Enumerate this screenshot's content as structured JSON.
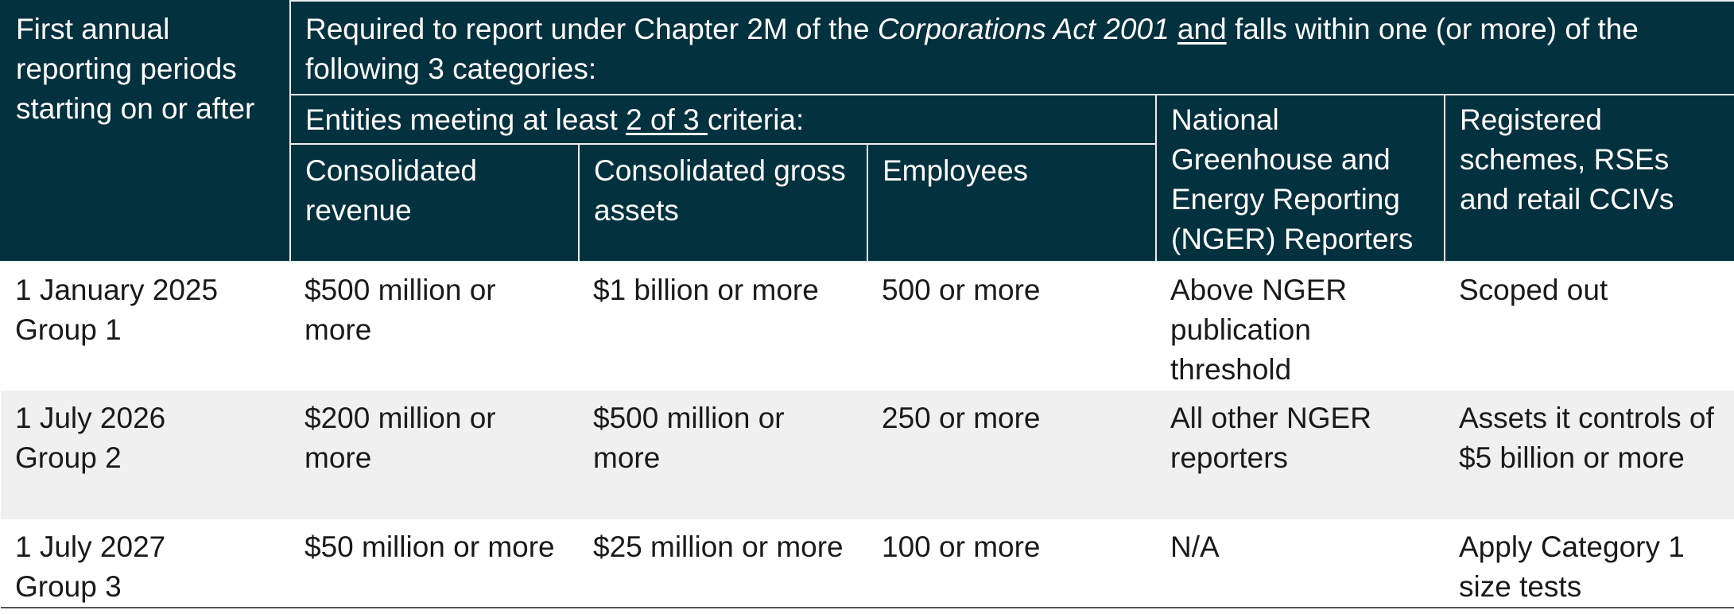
{
  "header": {
    "corner": "First annual reporting periods starting on or after",
    "required": {
      "part1": "Required to report under Chapter 2M of the ",
      "act": "Corporations Act 2001",
      "space1": " ",
      "and": "and",
      "part2": " falls within one (or more) of the following 3 categories:"
    },
    "entities": {
      "part1": "Entities meeting at least ",
      "criteria": "2 of 3 ",
      "part2": "criteria:"
    },
    "nger": "National Greenhouse and Energy Reporting (NGER) Reporters",
    "registered": "Registered schemes, RSEs and retail CCIVs",
    "revenue": "Consolidated revenue",
    "assets": "Consolidated gross assets",
    "employees": "Employees"
  },
  "rows": [
    {
      "date": "1 January 2025",
      "group": "Group 1",
      "revenue": "$500 million or more",
      "assets": "$1 billion or more",
      "employees": "500 or more",
      "nger": "Above NGER publication threshold",
      "registered": "Scoped out"
    },
    {
      "date": "1 July 2026",
      "group": "Group 2",
      "revenue": "$200 million or more",
      "assets": "$500 million or more",
      "employees": "250 or more",
      "nger": "All other NGER reporters",
      "registered": "Assets it controls of $5 billion or more"
    },
    {
      "date": "1 July 2027",
      "group": "Group 3",
      "revenue": "$50 million or more",
      "assets": "$25 million or more",
      "employees": "100 or more",
      "nger": "N/A",
      "registered": "Apply Category 1 size tests"
    }
  ]
}
